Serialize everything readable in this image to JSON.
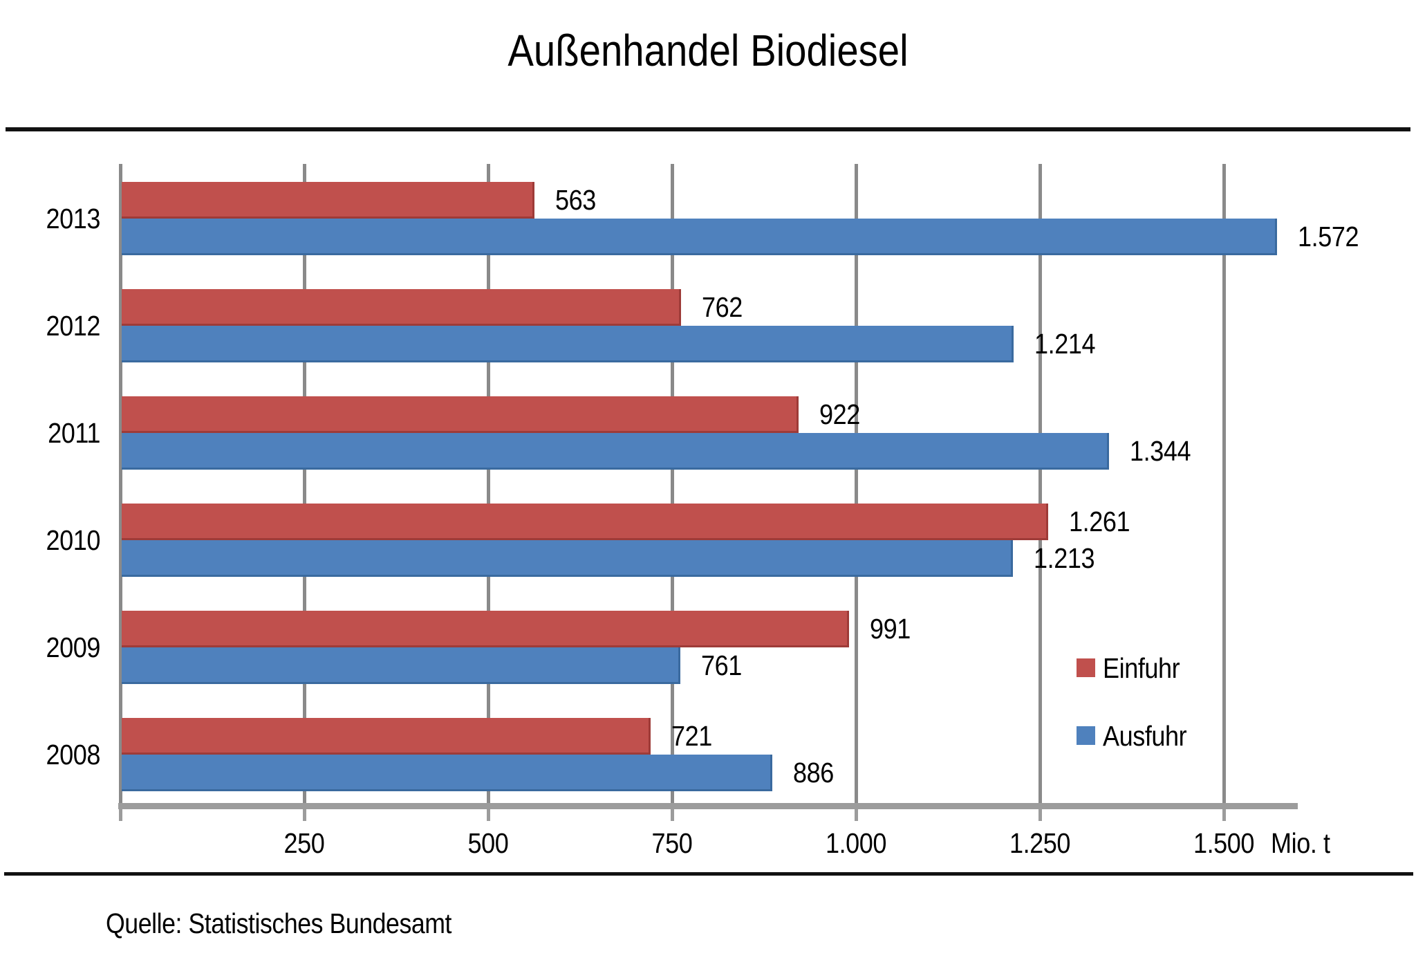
{
  "page": {
    "background": "#FFFFFF",
    "separator_color": "#111111"
  },
  "source": "Quelle: Statistisches Bundesamt",
  "chart_data": {
    "type": "bar",
    "orientation": "horizontal",
    "title": "Außenhandel Biodiesel",
    "categories": [
      "2013",
      "2012",
      "2011",
      "2010",
      "2009",
      "2008"
    ],
    "series": [
      {
        "name": "Einfuhr",
        "color": "#C0504D",
        "edge_color": "#9E3B38",
        "values": [
          563,
          762,
          922,
          1261,
          991,
          721
        ],
        "value_labels": [
          "563",
          "762",
          "922",
          "1.261",
          "991",
          "721"
        ]
      },
      {
        "name": "Ausfuhr",
        "color": "#4F81BD",
        "edge_color": "#3A6A9F",
        "values": [
          1572,
          1214,
          1344,
          1213,
          761,
          886
        ],
        "value_labels": [
          "1.572",
          "1.214",
          "1.344",
          "1.213",
          "761",
          "886"
        ]
      }
    ],
    "x_axis": {
      "min": 0,
      "max": 1600,
      "ticks": [
        0,
        250,
        500,
        750,
        1000,
        1250,
        1500
      ],
      "tick_labels": [
        "",
        "250",
        "500",
        "750",
        "1.000",
        "1.250",
        "1.500"
      ],
      "unit_label": "Mio. t"
    },
    "legend": {
      "position": "right-middle",
      "entries": [
        {
          "label": "Einfuhr",
          "color": "#C0504D"
        },
        {
          "label": "Ausfuhr",
          "color": "#4F81BD"
        }
      ]
    },
    "grid": true,
    "gridline_color": "#8A8A8A",
    "axis_color": "#9C9C9C",
    "text_color": "#000000",
    "source": "Quelle: Statistisches Bundesamt"
  }
}
